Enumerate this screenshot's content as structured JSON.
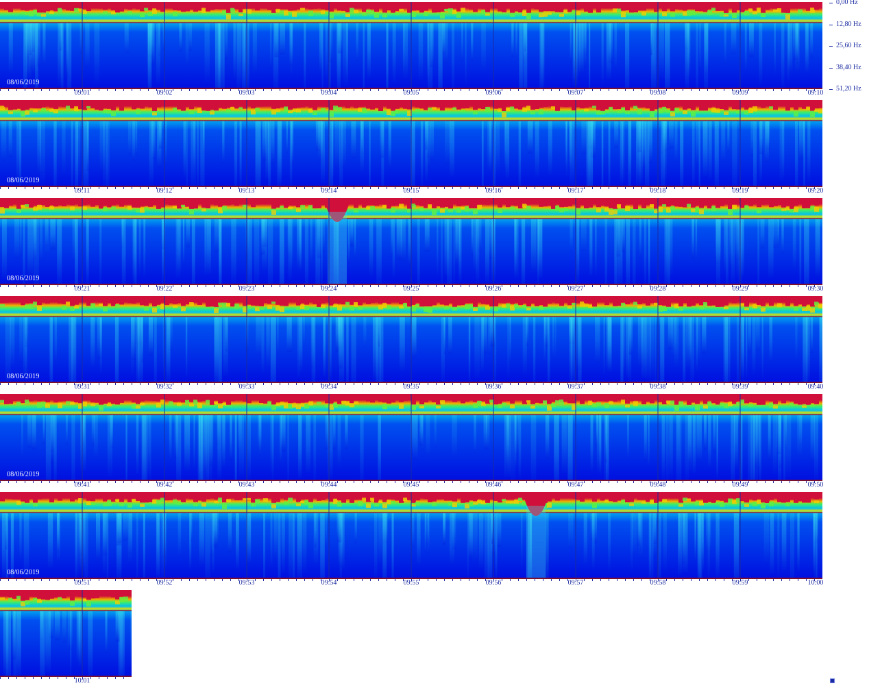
{
  "chart_data": {
    "type": "heatmap",
    "title": "",
    "date": "08/06/2019",
    "y_axis": {
      "unit": "Hz",
      "ticks": [
        "0,00 Hz",
        "12,80 Hz",
        "25,60 Hz",
        "38,40 Hz",
        "51,20 Hz"
      ],
      "ylim": [
        0,
        51.2
      ]
    },
    "rows": [
      {
        "date": "08/06/2019",
        "ticks": [
          "09:01",
          "09:02",
          "09:03",
          "09:04",
          "09:05",
          "09:06",
          "09:07",
          "09:08",
          "09:09",
          "09:10"
        ]
      },
      {
        "date": "08/06/2019",
        "ticks": [
          "09:11",
          "09:12",
          "09:13",
          "09:14",
          "09:15",
          "09:16",
          "09:17",
          "09:18",
          "09:19",
          "09:20"
        ]
      },
      {
        "date": "08/06/2019",
        "ticks": [
          "09:21",
          "09:22",
          "09:23",
          "09:24",
          "09:25",
          "09:26",
          "09:27",
          "09:28",
          "09:29",
          "09:30"
        ]
      },
      {
        "date": "08/06/2019",
        "ticks": [
          "09:31",
          "09:32",
          "09:33",
          "09:34",
          "09:35",
          "09:36",
          "09:37",
          "09:38",
          "09:39",
          "09:40"
        ]
      },
      {
        "date": "08/06/2019",
        "ticks": [
          "09:41",
          "09:42",
          "09:43",
          "09:44",
          "09:45",
          "09:46",
          "09:47",
          "09:48",
          "09:49",
          "09:50"
        ]
      },
      {
        "date": "08/06/2019",
        "ticks": [
          "09:51",
          "09:52",
          "09:53",
          "09:54",
          "09:55",
          "09:56",
          "09:57",
          "09:58",
          "09:59",
          "10:00"
        ]
      },
      {
        "date": "",
        "ticks": [
          "10:01"
        ],
        "partial_minutes": 1.6
      }
    ],
    "events": [
      {
        "time": "09:25",
        "note": "strong burst"
      },
      {
        "time": "09:57",
        "note": "strong burst"
      }
    ],
    "colormap": [
      "#0010e0",
      "#0060f0",
      "#00c8f0",
      "#00f0a0",
      "#80f000",
      "#f0f000",
      "#f08000",
      "#d0103a"
    ]
  }
}
